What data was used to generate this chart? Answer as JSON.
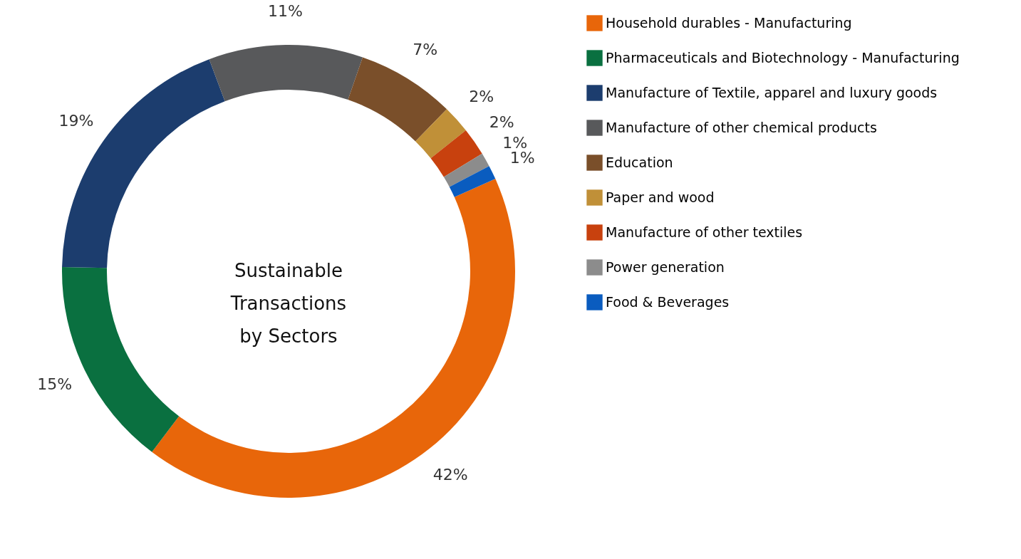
{
  "chart_data": {
    "type": "donut",
    "title": "Sustainable Transactions by Sectors",
    "categories": [
      "Household durables - Manufacturing",
      "Pharmaceuticals and Biotechnology - Manufacturing",
      "Manufacture of Textile, apparel and luxury goods",
      "Manufacture of other chemical products",
      "Education",
      "Paper and wood",
      "Manufacture of other textiles",
      "Power generation",
      "Food & Beverages"
    ],
    "values": [
      42,
      15,
      19,
      11,
      7,
      2,
      2,
      1,
      1
    ],
    "value_labels": [
      "42%",
      "15%",
      "19%",
      "11%",
      "7%",
      "2%",
      "2%",
      "1%",
      "1%"
    ],
    "colors": [
      "#e8660a",
      "#0a7040",
      "#1c3d6e",
      "#58595b",
      "#7a4f2a",
      "#c09038",
      "#c8410e",
      "#8c8c8c",
      "#0a5cbf"
    ],
    "legend": "right"
  }
}
